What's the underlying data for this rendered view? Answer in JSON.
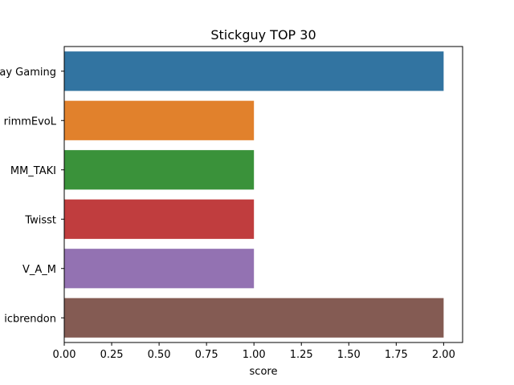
{
  "chart_data": {
    "type": "bar",
    "orientation": "horizontal",
    "title": "Stickguy TOP 30",
    "xlabel": "score",
    "ylabel": "",
    "xlim": [
      0,
      2.1
    ],
    "xticks": [
      "0.00",
      "0.25",
      "0.50",
      "0.75",
      "1.00",
      "1.25",
      "1.50",
      "1.75",
      "2.00"
    ],
    "grid": false,
    "categories": [
      "Slay Gaming",
      "GrimmEvoL",
      "MM_TAKI",
      "Twisst",
      "V_A_M",
      "Epicbrendon"
    ],
    "visible_labels": [
      "ay Gaming",
      "rimmEvoL",
      "MM_TAKI",
      "Twisst",
      "V_A_M",
      "icbrendon"
    ],
    "values": [
      2,
      1,
      1,
      1,
      1,
      2
    ],
    "colors": [
      "#3274a1",
      "#e1812c",
      "#3a923a",
      "#c03d3e",
      "#9372b2",
      "#845b53"
    ]
  }
}
